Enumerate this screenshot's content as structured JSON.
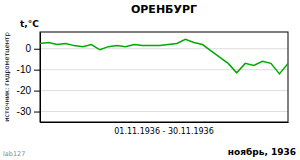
{
  "chart_data": {
    "type": "line",
    "title": "ОРЕНБУРГ",
    "y_label": "t,°C",
    "x_label": "01.11.1936 - 30.11.1936",
    "annotations": [
      "ноябрь, 1936",
      "источник: гидрометцентр",
      "lab127"
    ],
    "x": [
      1,
      2,
      3,
      4,
      5,
      6,
      7,
      8,
      9,
      10,
      11,
      12,
      13,
      14,
      15,
      16,
      17,
      18,
      19,
      20,
      21,
      22,
      23,
      24,
      25,
      26,
      27,
      28,
      29,
      30
    ],
    "values": [
      2.5,
      3.0,
      2.0,
      2.5,
      1.5,
      1.0,
      2.0,
      -0.5,
      1.0,
      1.5,
      1.0,
      2.0,
      1.5,
      1.5,
      1.5,
      2.0,
      2.5,
      4.5,
      3.0,
      2.0,
      -1.0,
      -4.0,
      -7.0,
      -11.5,
      -7.0,
      -8.0,
      -6.0,
      -7.0,
      -12.0,
      -7.0
    ],
    "color": "#00aa00",
    "xlim": [
      1,
      30
    ],
    "xticks": [],
    "ylim": [
      -35,
      8
    ],
    "yticks": [
      0,
      -10,
      -20,
      -30
    ],
    "grid": true,
    "tick_labels": "y"
  }
}
